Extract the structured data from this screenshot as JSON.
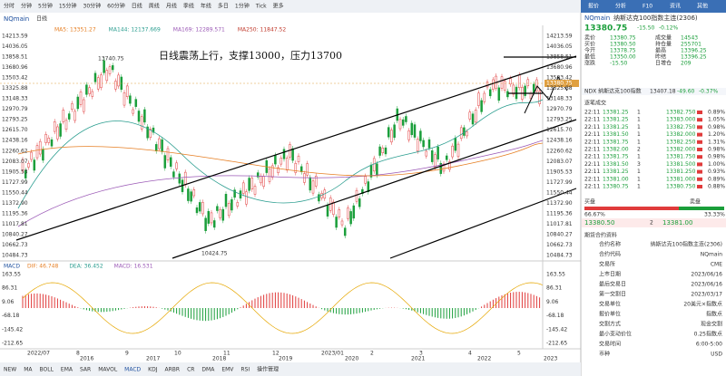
{
  "toolbar": {
    "left": [
      "分时",
      "分钟",
      "5分钟",
      "15分钟",
      "30分钟",
      "60分钟",
      "日线",
      "周线",
      "月线",
      "季线",
      "年线",
      "多日",
      "1分钟",
      "Tick",
      "更多"
    ],
    "right": [
      "报价",
      "分析",
      "F10",
      "资讯",
      "其他"
    ]
  },
  "chart": {
    "symbol": "NQmain",
    "period": "日线",
    "ma": [
      "MA5: 13351.27",
      "MA144: 12137.669",
      "MA169: 12289.571",
      "MA250: 11847.52"
    ],
    "annotation": "日线震荡上行，支撑13000，压力13700",
    "high_label": "13740.75",
    "low_label": "10424.75",
    "price_ticks": [
      "14213.59",
      "14036.05",
      "13858.51",
      "13680.96",
      "13503.42",
      "13325.88",
      "13148.33",
      "12970.79",
      "12793.25",
      "12615.70",
      "12438.16",
      "12260.62",
      "12083.07",
      "11905.53",
      "11727.99",
      "11550.44",
      "11372.90",
      "11195.36",
      "11017.81",
      "10840.27",
      "10662.73",
      "10484.73"
    ],
    "last_price": "13380.75",
    "macd": {
      "name": "MACD",
      "items": [
        "DIF: 46.748",
        "DEA: 36.452",
        "MACD: 16.531"
      ],
      "ticks": [
        "163.55",
        "86.31",
        "9.06",
        "-68.18",
        "-145.42",
        "-212.65"
      ]
    },
    "dates": [
      "2022/07",
      "8",
      "9",
      "10",
      "11",
      "12",
      "2023/01",
      "2",
      "3",
      "4",
      "5"
    ],
    "years": [
      "2016",
      "2017",
      "2018",
      "2019",
      "2020",
      "2021",
      "2022",
      "2023"
    ]
  },
  "indicators": [
    "NEW",
    "MA",
    "BOLL",
    "EMA",
    "SAR",
    "MAVOL",
    "MACD",
    "KDJ",
    "ARBR",
    "CR",
    "DMA",
    "EMV",
    "RSI",
    "操作管理"
  ],
  "quote": {
    "symbol": "NQmain",
    "name": "纳斯达克100指数主连(2306)",
    "price": "13380.75",
    "change": "-15.50",
    "change_pct": "-0.12%",
    "fields": [
      [
        "卖价",
        "13380.75"
      ],
      [
        "成交量",
        "14543"
      ],
      [
        "买价",
        "13380.50"
      ],
      [
        "持仓量",
        "255701"
      ],
      [
        "今开",
        "13378.75"
      ],
      [
        "最高",
        "13396.25"
      ],
      [
        "最低",
        "13350.00"
      ],
      [
        "昨结",
        "13396.25"
      ],
      [
        "涨跌",
        "-15.50"
      ],
      [
        "日增仓",
        "209"
      ]
    ],
    "index": {
      "name": "NDX 纳斯达克100指数",
      "price": "13407.18",
      "change": "-49.60",
      "change_pct": "-0.37%"
    },
    "trades_title": "逐笔成交",
    "trades": [
      [
        "22:11",
        "13381.25",
        "1",
        "13382.750",
        "0.89%"
      ],
      [
        "22:11",
        "13381.25",
        "1",
        "13383.000",
        "1.05%"
      ],
      [
        "22:11",
        "13381.25",
        "1",
        "13382.750",
        "0.98%"
      ],
      [
        "22:11",
        "13381.50",
        "1",
        "13382.000",
        "1.20%"
      ],
      [
        "22:11",
        "13381.75",
        "1",
        "13382.250",
        "1.31%"
      ],
      [
        "22:11",
        "13382.00",
        "2",
        "13382.000",
        "0.98%"
      ],
      [
        "22:11",
        "13381.75",
        "1",
        "13381.750",
        "0.98%"
      ],
      [
        "22:11",
        "13381.50",
        "3",
        "13381.500",
        "1.00%"
      ],
      [
        "22:11",
        "13381.25",
        "1",
        "13381.250",
        "0.93%"
      ],
      [
        "22:11",
        "13381.00",
        "1",
        "13381.000",
        "0.89%"
      ],
      [
        "22:11",
        "13380.75",
        "1",
        "13380.750",
        "0.88%"
      ]
    ],
    "buy_label": "买盘",
    "sell_label": "卖盘",
    "buy_pct": "66.67%",
    "sell_pct": "33.33%",
    "bid": "13380.50",
    "bid_qty": "2",
    "ask": "13381.00",
    "info_title": "期货合约资料",
    "info": [
      [
        "合约名称",
        "纳斯达克100指数主连(2306)"
      ],
      [
        "合约代码",
        "NQmain"
      ],
      [
        "交易所",
        "CME"
      ],
      [
        "上市日期",
        "2023/06/16"
      ],
      [
        "最后交易日",
        "2023/06/16"
      ],
      [
        "第一交割日",
        "2023/03/17"
      ],
      [
        "交易单位",
        "20美元×指数点"
      ],
      [
        "报价单位",
        "指数点"
      ],
      [
        "交割方式",
        "现金交割"
      ],
      [
        "最小变动价位",
        "0.25指数点"
      ],
      [
        "交易时间",
        "6:00-5:00"
      ],
      [
        "币种",
        "USD"
      ]
    ]
  }
}
